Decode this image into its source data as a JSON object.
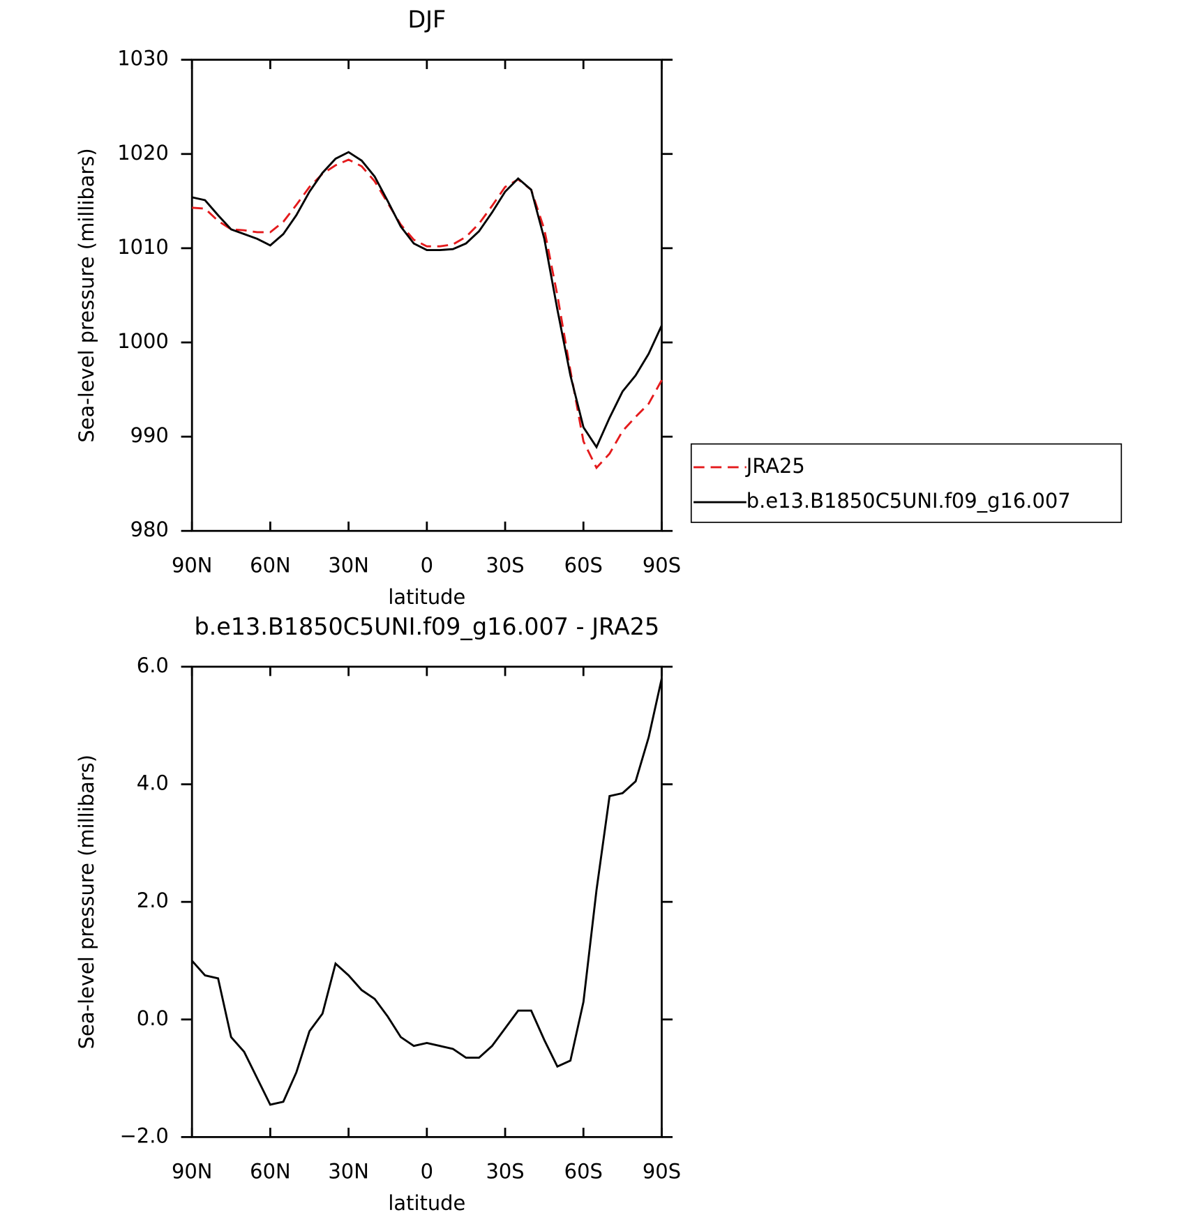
{
  "chart_data": [
    {
      "type": "line",
      "title": "DJF",
      "x_label": "latitude",
      "y_label": "Sea-level pressure (millibars)",
      "x": [
        90,
        85,
        80,
        75,
        70,
        65,
        60,
        55,
        50,
        45,
        40,
        35,
        30,
        25,
        20,
        15,
        10,
        5,
        0,
        -5,
        -10,
        -15,
        -20,
        -25,
        -30,
        -35,
        -40,
        -45,
        -50,
        -55,
        -60,
        -65,
        -70,
        -75,
        -80,
        -85,
        -90
      ],
      "series": [
        {
          "name": "JRA25",
          "color": "#e41a1c",
          "linestyle": "dashed",
          "values": [
            1014.3,
            1014.2,
            1012.9,
            1012.0,
            1011.9,
            1011.7,
            1011.7,
            1012.8,
            1014.6,
            1016.5,
            1017.9,
            1018.8,
            1019.4,
            1018.7,
            1017.1,
            1014.8,
            1012.5,
            1010.9,
            1010.2,
            1010.2,
            1010.4,
            1011.2,
            1012.6,
            1014.5,
            1016.5,
            1017.3,
            1016.2,
            1012.0,
            1005.0,
            997.0,
            989.5,
            986.7,
            988.2,
            990.6,
            992.1,
            993.5,
            996.0
          ]
        },
        {
          "name": "b.e13.B1850C5UNI.f09_g16.007",
          "color": "#000000",
          "linestyle": "solid",
          "values": [
            1015.4,
            1015.1,
            1013.5,
            1012.0,
            1011.5,
            1011.0,
            1010.3,
            1011.5,
            1013.5,
            1016.0,
            1018.0,
            1019.5,
            1020.2,
            1019.3,
            1017.6,
            1015.0,
            1012.3,
            1010.5,
            1009.8,
            1009.8,
            1009.9,
            1010.5,
            1011.8,
            1013.8,
            1016.0,
            1017.4,
            1016.2,
            1011.0,
            1003.5,
            996.5,
            991.0,
            988.9,
            992.0,
            994.8,
            996.5,
            998.8,
            1001.8
          ]
        }
      ],
      "xlim": [
        90,
        -90
      ],
      "xticks": [
        {
          "value": 90,
          "label": "90N"
        },
        {
          "value": 60,
          "label": "60N"
        },
        {
          "value": 30,
          "label": "30N"
        },
        0,
        {
          "value": -30,
          "label": "30S"
        },
        {
          "value": -60,
          "label": "60S"
        },
        {
          "value": -90,
          "label": "90S"
        }
      ],
      "ylim": [
        980,
        1030
      ],
      "yticks": [
        980,
        990,
        1000,
        1010,
        1020,
        1030
      ],
      "legend": "right"
    },
    {
      "type": "line",
      "title": "b.e13.B1850C5UNI.f09_g16.007 - JRA25",
      "x_label": "latitude",
      "y_label": "Sea-level pressure (millibars)",
      "x": [
        90,
        85,
        80,
        75,
        70,
        65,
        60,
        55,
        50,
        45,
        40,
        35,
        30,
        25,
        20,
        15,
        10,
        5,
        0,
        -5,
        -10,
        -15,
        -20,
        -25,
        -30,
        -35,
        -40,
        -45,
        -50,
        -55,
        -60,
        -65,
        -70,
        -75,
        -80,
        -85,
        -90
      ],
      "series": [
        {
          "color": "#000000",
          "linestyle": "solid",
          "values": [
            1.0,
            0.75,
            0.7,
            -0.3,
            -0.55,
            -1.0,
            -1.45,
            -1.4,
            -0.9,
            -0.2,
            0.1,
            0.95,
            0.75,
            0.5,
            0.35,
            0.05,
            -0.3,
            -0.45,
            -0.4,
            -0.45,
            -0.5,
            -0.65,
            -0.65,
            -0.45,
            -0.15,
            0.15,
            0.15,
            -0.35,
            -0.8,
            -0.7,
            0.3,
            2.2,
            3.8,
            3.85,
            4.05,
            4.8,
            5.8
          ]
        }
      ],
      "xlim": [
        90,
        -90
      ],
      "xticks": [
        {
          "value": 90,
          "label": "90N"
        },
        {
          "value": 60,
          "label": "60N"
        },
        {
          "value": 30,
          "label": "30N"
        },
        0,
        {
          "value": -30,
          "label": "30S"
        },
        {
          "value": -60,
          "label": "60S"
        },
        {
          "value": -90,
          "label": "90S"
        }
      ],
      "ylim": [
        -2,
        6
      ],
      "yticks": [
        {
          "value": -2,
          "label": "−2.0"
        },
        {
          "value": 0,
          "label": "0.0"
        },
        {
          "value": 2,
          "label": "2.0"
        },
        {
          "value": 4,
          "label": "4.0"
        },
        {
          "value": 6,
          "label": "6.0"
        }
      ]
    }
  ]
}
